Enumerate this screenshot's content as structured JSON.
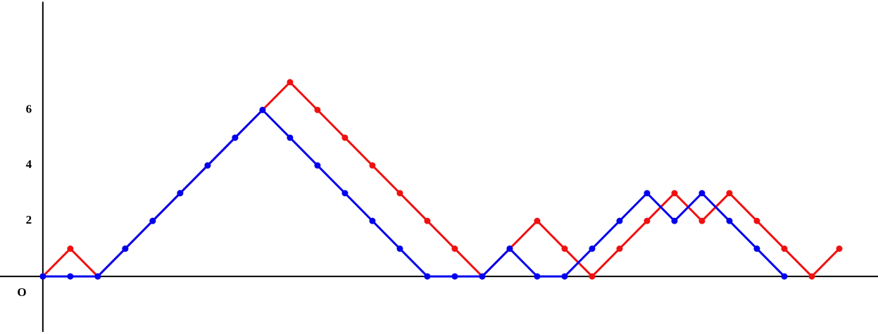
{
  "chart_data": {
    "type": "line",
    "origin_label": "O",
    "x": [
      0,
      1,
      2,
      3,
      4,
      5,
      6,
      7,
      8,
      9,
      10,
      11,
      12,
      13,
      14,
      15,
      16,
      17,
      18,
      19,
      20,
      21,
      22,
      23,
      24,
      25,
      26,
      27,
      28,
      29
    ],
    "series": [
      {
        "color": "#f01010",
        "values": [
          0,
          1,
          0,
          1,
          2,
          3,
          4,
          5,
          6,
          7,
          6,
          5,
          4,
          3,
          2,
          1,
          0,
          1,
          2,
          1,
          0,
          1,
          2,
          3,
          2,
          3,
          2,
          1,
          0,
          1
        ]
      },
      {
        "color": "#0000ee",
        "values": [
          0,
          0,
          0,
          1,
          2,
          3,
          4,
          5,
          6,
          5,
          4,
          3,
          2,
          1,
          0,
          0,
          0,
          1,
          0,
          0,
          1,
          2,
          3,
          2,
          3,
          2,
          1,
          0,
          null,
          null
        ]
      }
    ],
    "xlim": [
      -1.56,
      30.41
    ],
    "ylim": [
      -2,
      9.9
    ],
    "yticks": [
      2,
      4,
      6
    ],
    "grid": false
  }
}
